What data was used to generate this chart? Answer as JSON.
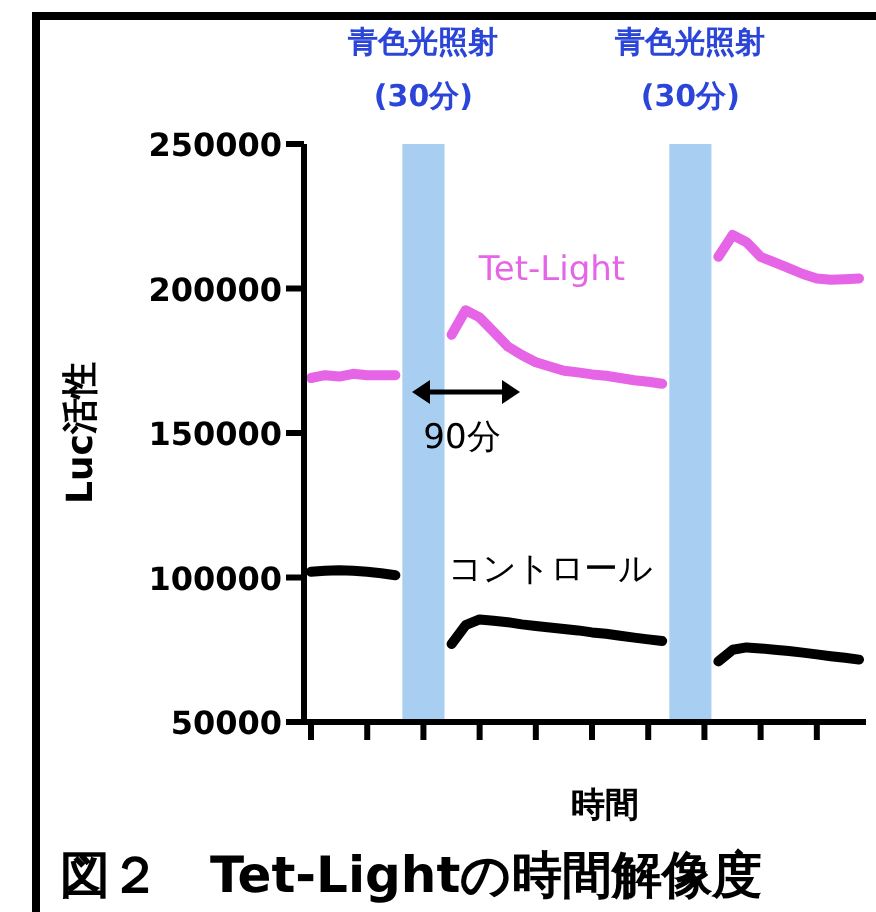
{
  "chart_data": {
    "type": "line",
    "title": "図２　Tet-Lightの時間解像度",
    "xlabel": "時間",
    "ylabel": "Luc活性",
    "categories": [
      null,
      null,
      null,
      null,
      null,
      null,
      null,
      null,
      null,
      null,
      null,
      null,
      null,
      null,
      null,
      null,
      null,
      null,
      null,
      null,
      null,
      null,
      null,
      null,
      null,
      null,
      null,
      null,
      null,
      null,
      null,
      null,
      null,
      null,
      null,
      null,
      null,
      null,
      null,
      null
    ],
    "ylim": [
      50000,
      250000
    ],
    "yticks": [
      50000,
      100000,
      150000,
      200000,
      250000
    ],
    "grid": false,
    "legend": false,
    "marker": "none",
    "line_style": "solid",
    "series": [
      {
        "color": "#e664e6",
        "values": [
          169000,
          170000,
          169500,
          170500,
          170000,
          170000,
          170000,
          null,
          null,
          null,
          null,
          null,
          null,
          null,
          null,
          null,
          null,
          null,
          null,
          null,
          null,
          null,
          null,
          null,
          null,
          null,
          null,
          null,
          null,
          null,
          null,
          null,
          null,
          null,
          null,
          null,
          null,
          null,
          null,
          null
        ]
      },
      {
        "color": "#e664e6",
        "values": [
          null,
          null,
          null,
          null,
          null,
          null,
          null,
          null,
          null,
          null,
          184000,
          192500,
          190000,
          185000,
          180000,
          177000,
          174500,
          173000,
          171500,
          171000,
          170300,
          169800,
          169000,
          168300,
          167700,
          167000,
          null,
          null,
          null,
          null,
          null,
          null,
          null,
          null,
          null,
          null,
          null,
          null,
          null,
          null
        ]
      },
      {
        "name": "Tet-Light",
        "color": "#e664e6",
        "values": [
          null,
          null,
          null,
          null,
          null,
          null,
          null,
          null,
          null,
          null,
          null,
          null,
          null,
          null,
          null,
          null,
          null,
          null,
          null,
          null,
          null,
          null,
          null,
          null,
          null,
          null,
          null,
          null,
          null,
          211000,
          218500,
          216000,
          211000,
          209000,
          207000,
          205000,
          203500,
          203000,
          203200,
          203500
        ]
      },
      {
        "color": "#000000",
        "values": [
          102000,
          102300,
          102500,
          102300,
          102000,
          101500,
          100800,
          null,
          null,
          null,
          null,
          null,
          null,
          null,
          null,
          null,
          null,
          null,
          null,
          null,
          null,
          null,
          null,
          null,
          null,
          null,
          null,
          null,
          null,
          null,
          null,
          null,
          null,
          null,
          null,
          null,
          null,
          null,
          null,
          null
        ]
      },
      {
        "name": "コントロール",
        "color": "#000000",
        "values": [
          null,
          null,
          null,
          null,
          null,
          null,
          null,
          null,
          null,
          null,
          77000,
          83500,
          85500,
          85000,
          84500,
          83800,
          83200,
          82700,
          82200,
          81700,
          81000,
          80500,
          79800,
          79200,
          78600,
          78000,
          null,
          null,
          null,
          null,
          null,
          null,
          null,
          null,
          null,
          null,
          null,
          null,
          null,
          null
        ]
      },
      {
        "color": "#000000",
        "values": [
          null,
          null,
          null,
          null,
          null,
          null,
          null,
          null,
          null,
          null,
          null,
          null,
          null,
          null,
          null,
          null,
          null,
          null,
          null,
          null,
          null,
          null,
          null,
          null,
          null,
          null,
          null,
          null,
          null,
          71000,
          75000,
          75800,
          75500,
          75000,
          74600,
          74000,
          73400,
          72800,
          72200,
          71600
        ]
      }
    ],
    "annotations": [
      "青色光照射\n(30分)",
      "青色光照射\n(30分)",
      "90分"
    ]
  }
}
